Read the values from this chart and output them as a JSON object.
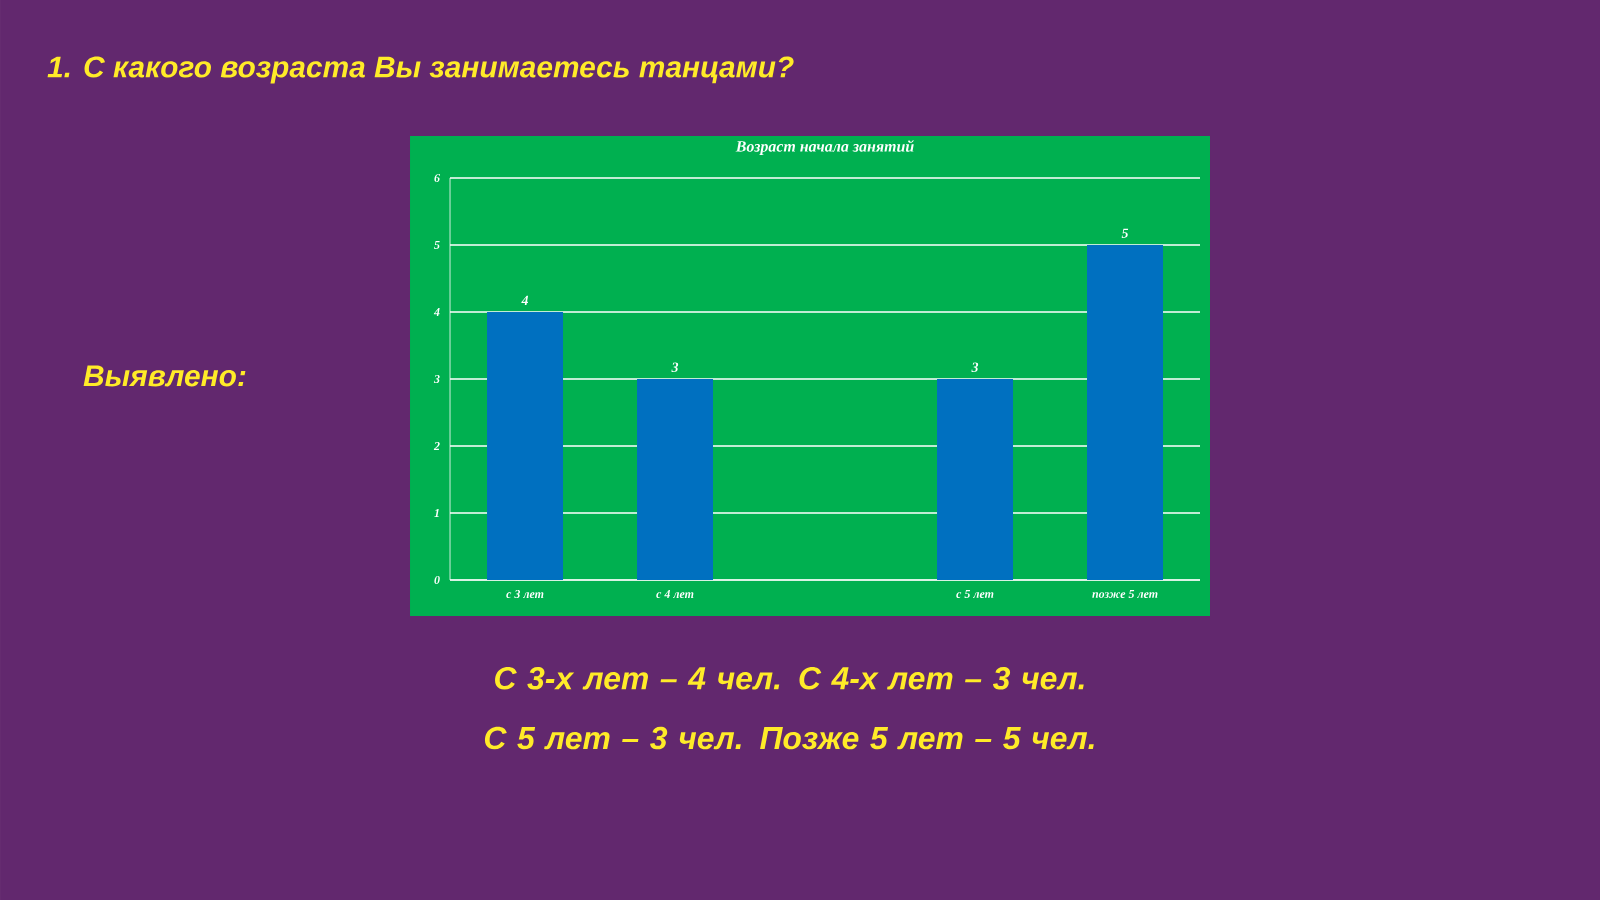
{
  "chart_data": {
    "type": "bar",
    "title": "Возраст начала занятий",
    "categories": [
      "с 3 лет",
      "с 4 лет",
      null,
      "с 5 лет",
      "позже 5 лет"
    ],
    "values": [
      4,
      3,
      null,
      3,
      5
    ],
    "color": "#0070c0",
    "ylim": [
      0,
      6
    ],
    "yticks": [
      0,
      1,
      2,
      3,
      4,
      5,
      6
    ],
    "grid": "y",
    "data_labels": true,
    "annotations": [
      "1.  С какого возраста Вы занимаетесь танцами?",
      "Выявлено:",
      "С 3-х лет – 4 чел. С 4-х лет –  3 чел. С 5 лет – 3 чел. Позже 5 лет – 5 чел."
    ]
  }
}
